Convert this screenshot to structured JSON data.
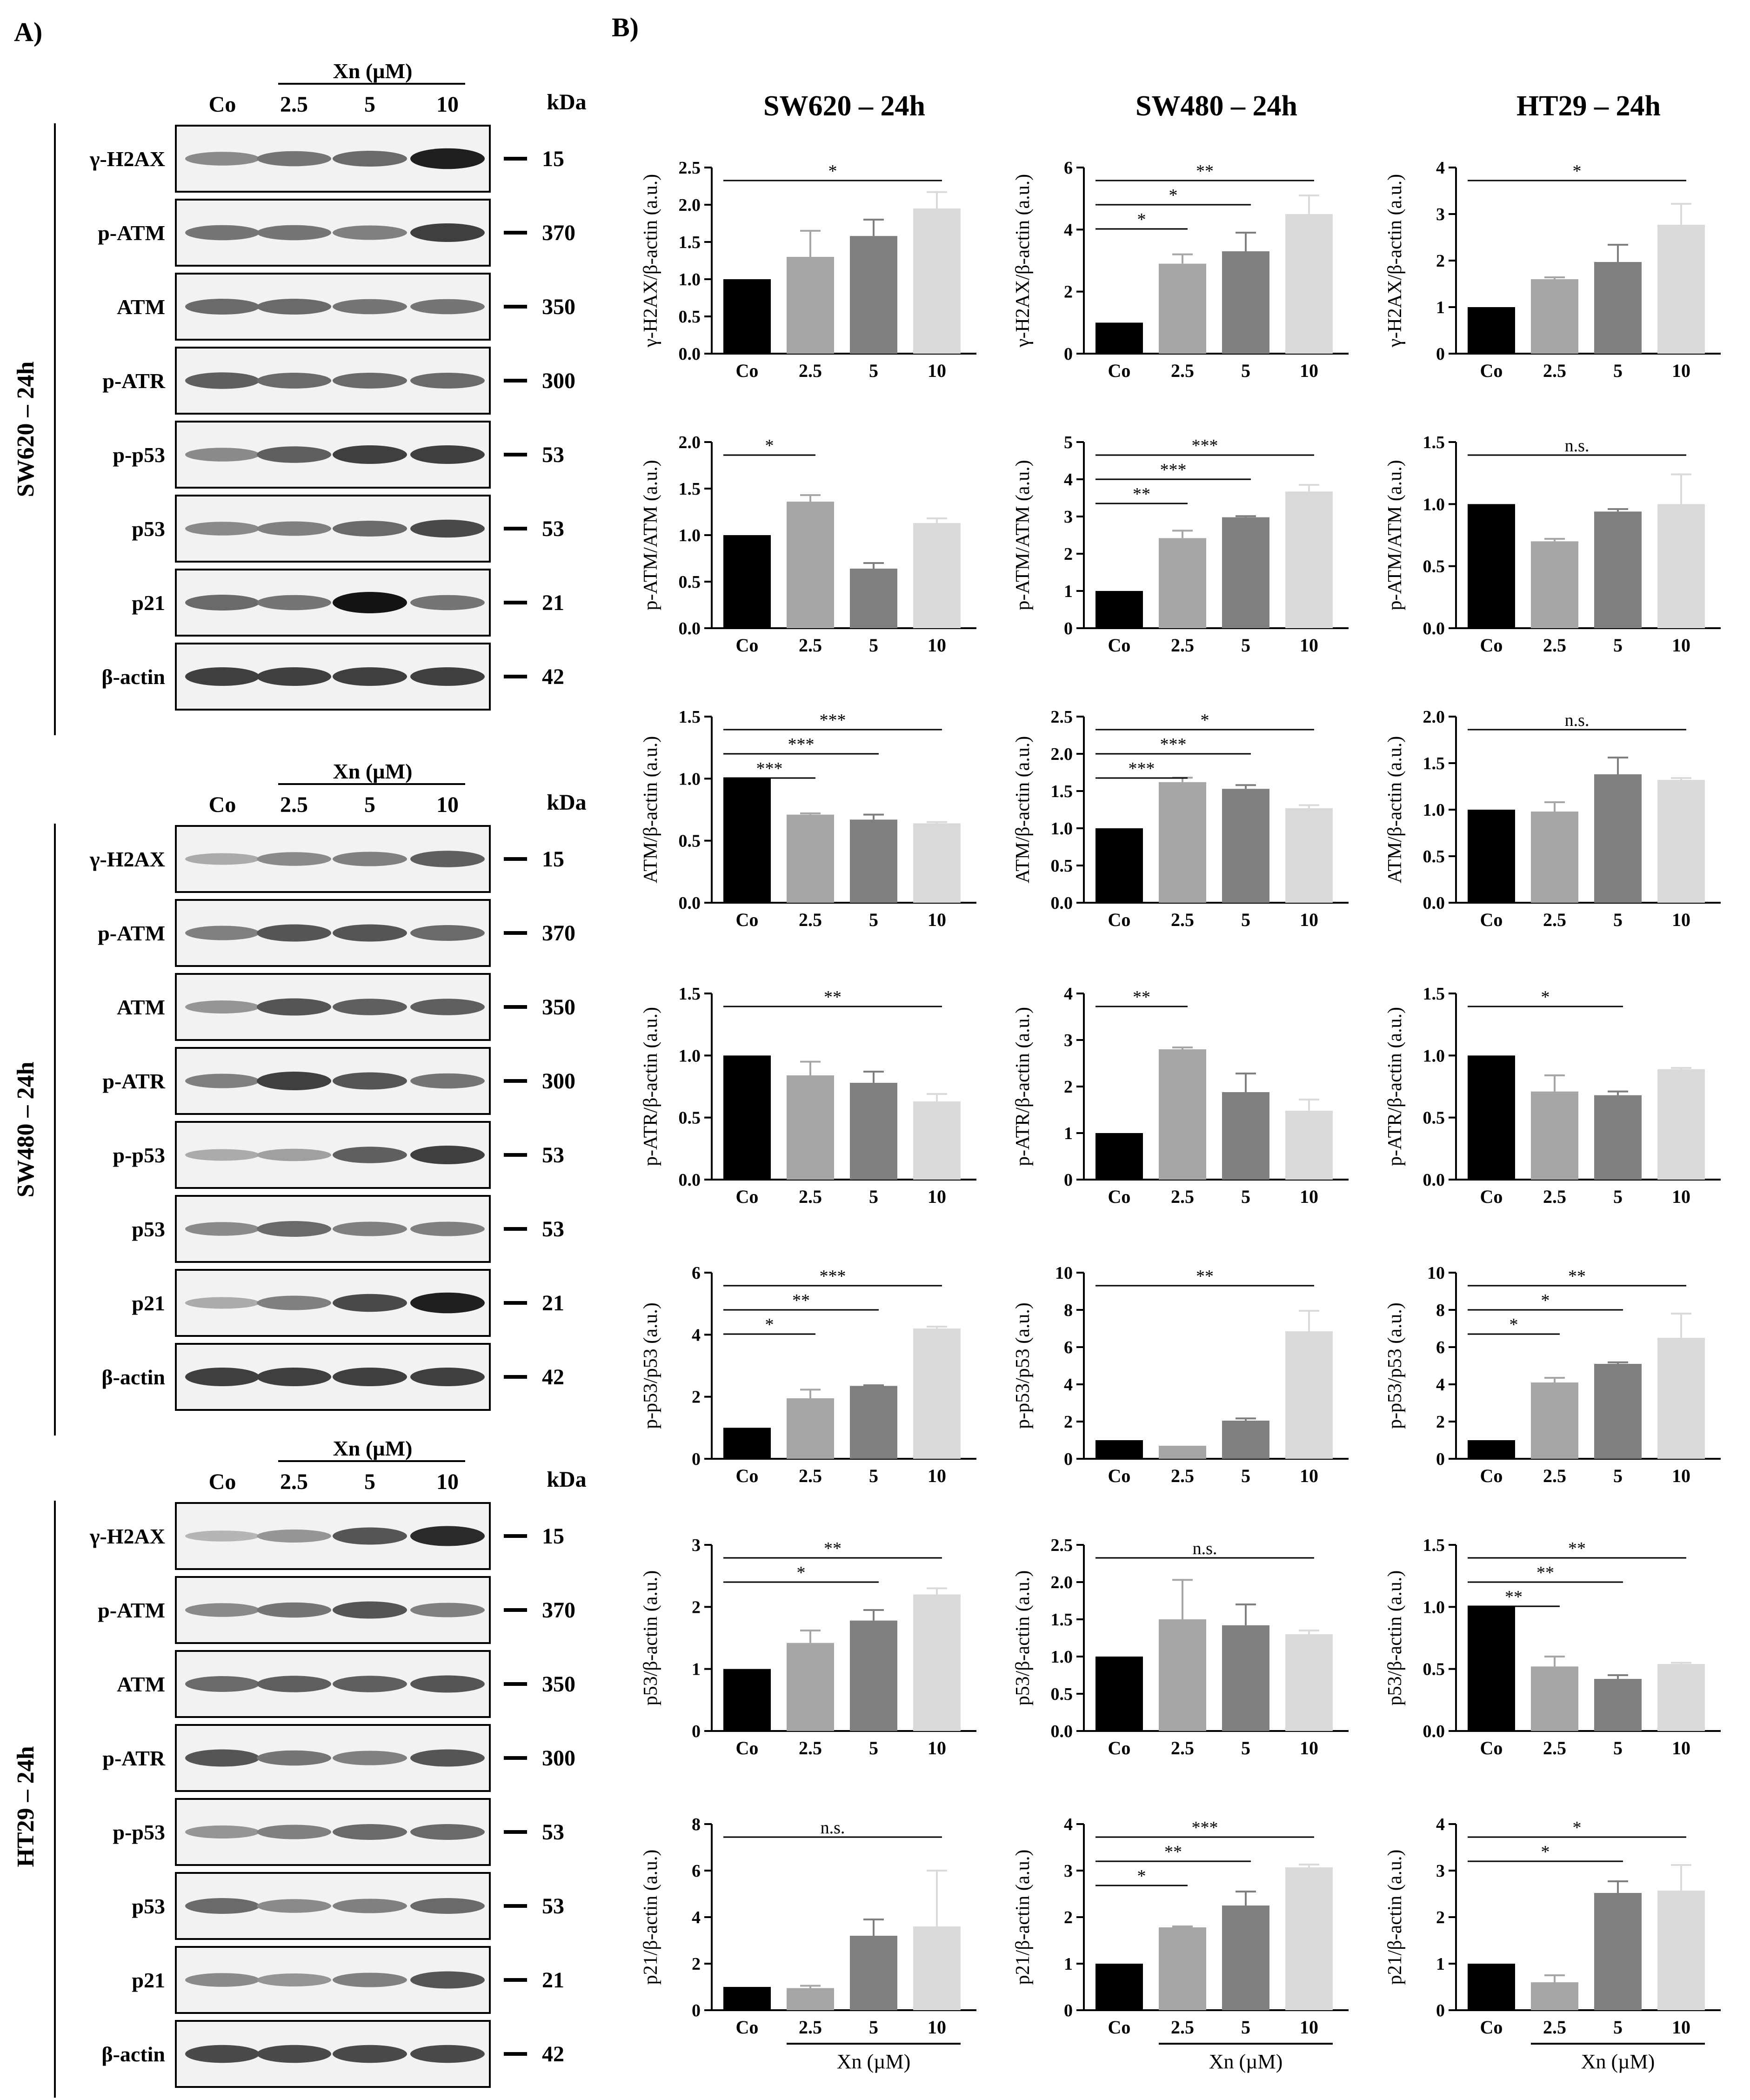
{
  "panel_labels": {
    "a": "A)",
    "b": "B)"
  },
  "blot_lanes": [
    "Co",
    "2.5",
    "5",
    "10"
  ],
  "blot_treatment": "Xn (µM)",
  "kda_label": "kDa",
  "blot_rows": [
    {
      "protein": "γ-H2AX",
      "kda": "15"
    },
    {
      "protein": "p-ATM",
      "kda": "370"
    },
    {
      "protein": "ATM",
      "kda": "350"
    },
    {
      "protein": "p-ATR",
      "kda": "300"
    },
    {
      "protein": "p-p53",
      "kda": "53"
    },
    {
      "protein": "p53",
      "kda": "53"
    },
    {
      "protein": "p21",
      "kda": "21"
    },
    {
      "protein": "β-actin",
      "kda": "42"
    }
  ],
  "blots": [
    {
      "cell_line": "SW620 – 24h",
      "intensities": [
        [
          0.45,
          0.55,
          0.6,
          0.95
        ],
        [
          0.55,
          0.55,
          0.5,
          0.8
        ],
        [
          0.6,
          0.6,
          0.55,
          0.55
        ],
        [
          0.65,
          0.6,
          0.6,
          0.6
        ],
        [
          0.45,
          0.65,
          0.8,
          0.8
        ],
        [
          0.45,
          0.5,
          0.6,
          0.75
        ],
        [
          0.6,
          0.55,
          1.0,
          0.55
        ],
        [
          0.8,
          0.8,
          0.8,
          0.8
        ]
      ]
    },
    {
      "cell_line": "SW480 – 24h",
      "intensities": [
        [
          0.3,
          0.45,
          0.5,
          0.65
        ],
        [
          0.5,
          0.7,
          0.7,
          0.6
        ],
        [
          0.4,
          0.7,
          0.65,
          0.65
        ],
        [
          0.5,
          0.8,
          0.7,
          0.55
        ],
        [
          0.3,
          0.35,
          0.65,
          0.8
        ],
        [
          0.45,
          0.6,
          0.5,
          0.5
        ],
        [
          0.3,
          0.5,
          0.75,
          0.95
        ],
        [
          0.8,
          0.8,
          0.8,
          0.8
        ]
      ]
    },
    {
      "cell_line": "HT29 – 24h",
      "intensities": [
        [
          0.25,
          0.4,
          0.7,
          0.9
        ],
        [
          0.45,
          0.55,
          0.7,
          0.5
        ],
        [
          0.6,
          0.65,
          0.65,
          0.7
        ],
        [
          0.7,
          0.55,
          0.5,
          0.7
        ],
        [
          0.4,
          0.5,
          0.6,
          0.6
        ],
        [
          0.6,
          0.45,
          0.5,
          0.6
        ],
        [
          0.45,
          0.4,
          0.5,
          0.7
        ],
        [
          0.75,
          0.75,
          0.75,
          0.75
        ]
      ]
    }
  ],
  "column_titles": [
    "SW620 – 24h",
    "SW480 – 24h",
    "HT29 – 24h"
  ],
  "xlabel": "Xn (µM)",
  "chart_data": [
    {
      "type": "bar",
      "title": "",
      "ylabel": "γ-H2AX/β-actin (a.u.)",
      "categories": [
        "Co",
        "2.5",
        "5",
        "10"
      ],
      "values": [
        1.0,
        1.3,
        1.58,
        1.95
      ],
      "errors": [
        0,
        0.35,
        0.22,
        0.22
      ],
      "ylim": [
        0,
        2.5
      ],
      "yticks": [
        "0.0",
        "0.5",
        "1.0",
        "1.5",
        "2.0",
        "2.5"
      ],
      "sig": [
        {
          "from": 0,
          "to": 3,
          "label": "*"
        }
      ]
    },
    {
      "type": "bar",
      "title": "",
      "ylabel": "γ-H2AX/β-actin (a.u.)",
      "categories": [
        "Co",
        "2.5",
        "5",
        "10"
      ],
      "values": [
        1.0,
        2.9,
        3.3,
        4.5
      ],
      "errors": [
        0,
        0.3,
        0.6,
        0.6
      ],
      "ylim": [
        0,
        6
      ],
      "yticks": [
        "0",
        "2",
        "4",
        "6"
      ],
      "sig": [
        {
          "from": 0,
          "to": 3,
          "label": "**"
        },
        {
          "from": 0,
          "to": 2,
          "label": "*"
        },
        {
          "from": 0,
          "to": 1,
          "label": "*"
        }
      ]
    },
    {
      "type": "bar",
      "title": "",
      "ylabel": "γ-H2AX/β-actin (a.u.)",
      "categories": [
        "Co",
        "2.5",
        "5",
        "10"
      ],
      "values": [
        1.0,
        1.6,
        1.97,
        2.77
      ],
      "errors": [
        0,
        0.04,
        0.37,
        0.45
      ],
      "ylim": [
        0,
        4
      ],
      "yticks": [
        "0",
        "1",
        "2",
        "3",
        "4"
      ],
      "sig": [
        {
          "from": 0,
          "to": 3,
          "label": "*"
        }
      ]
    },
    {
      "type": "bar",
      "title": "",
      "ylabel": "p-ATM/ATM (a.u.)",
      "categories": [
        "Co",
        "2.5",
        "5",
        "10"
      ],
      "values": [
        1.0,
        1.36,
        0.64,
        1.13
      ],
      "errors": [
        0,
        0.07,
        0.06,
        0.05
      ],
      "ylim": [
        0,
        2.0
      ],
      "yticks": [
        "0.0",
        "0.5",
        "1.0",
        "1.5",
        "2.0"
      ],
      "sig": [
        {
          "from": 0,
          "to": 1,
          "label": "*"
        }
      ]
    },
    {
      "type": "bar",
      "title": "",
      "ylabel": "p-ATM/ATM (a.u.)",
      "categories": [
        "Co",
        "2.5",
        "5",
        "10"
      ],
      "values": [
        1.0,
        2.42,
        2.98,
        3.67
      ],
      "errors": [
        0,
        0.2,
        0.03,
        0.18
      ],
      "ylim": [
        0,
        5
      ],
      "yticks": [
        "0",
        "1",
        "2",
        "3",
        "4",
        "5"
      ],
      "sig": [
        {
          "from": 0,
          "to": 3,
          "label": "***"
        },
        {
          "from": 0,
          "to": 2,
          "label": "***"
        },
        {
          "from": 0,
          "to": 1,
          "label": "**"
        }
      ]
    },
    {
      "type": "bar",
      "title": "",
      "ylabel": "p-ATM/ATM (a.u.)",
      "categories": [
        "Co",
        "2.5",
        "5",
        "10"
      ],
      "values": [
        1.0,
        0.7,
        0.94,
        1.0
      ],
      "errors": [
        0,
        0.02,
        0.02,
        0.24
      ],
      "ylim": [
        0,
        1.5
      ],
      "yticks": [
        "0.0",
        "0.5",
        "1.0",
        "1.5"
      ],
      "sig": [
        {
          "from": 0,
          "to": 3,
          "label": "n.s."
        }
      ]
    },
    {
      "type": "bar",
      "title": "",
      "ylabel": "ATM/β-actin (a.u.)",
      "categories": [
        "Co",
        "2.5",
        "5",
        "10"
      ],
      "values": [
        1.0,
        0.71,
        0.67,
        0.64
      ],
      "errors": [
        0,
        0.01,
        0.04,
        0.01
      ],
      "ylim": [
        0,
        1.5
      ],
      "yticks": [
        "0.0",
        "0.5",
        "1.0",
        "1.5"
      ],
      "sig": [
        {
          "from": 0,
          "to": 3,
          "label": "***"
        },
        {
          "from": 0,
          "to": 2,
          "label": "***"
        },
        {
          "from": 0,
          "to": 1,
          "label": "***"
        }
      ]
    },
    {
      "type": "bar",
      "title": "",
      "ylabel": "ATM/β-actin (a.u.)",
      "categories": [
        "Co",
        "2.5",
        "5",
        "10"
      ],
      "values": [
        1.0,
        1.62,
        1.53,
        1.27
      ],
      "errors": [
        0,
        0.06,
        0.05,
        0.04
      ],
      "ylim": [
        0,
        2.5
      ],
      "yticks": [
        "0.0",
        "0.5",
        "1.0",
        "1.5",
        "2.0",
        "2.5"
      ],
      "sig": [
        {
          "from": 0,
          "to": 3,
          "label": "*"
        },
        {
          "from": 0,
          "to": 2,
          "label": "***"
        },
        {
          "from": 0,
          "to": 1,
          "label": "***"
        }
      ]
    },
    {
      "type": "bar",
      "title": "",
      "ylabel": "ATM/β-actin (a.u.)",
      "categories": [
        "Co",
        "2.5",
        "5",
        "10"
      ],
      "values": [
        1.0,
        0.98,
        1.38,
        1.32
      ],
      "errors": [
        0,
        0.1,
        0.18,
        0.02
      ],
      "ylim": [
        0,
        2.0
      ],
      "yticks": [
        "0.0",
        "0.5",
        "1.0",
        "1.5",
        "2.0"
      ],
      "sig": [
        {
          "from": 0,
          "to": 3,
          "label": "n.s."
        }
      ]
    },
    {
      "type": "bar",
      "title": "",
      "ylabel": "p-ATR/β-actin (a.u.)",
      "categories": [
        "Co",
        "2.5",
        "5",
        "10"
      ],
      "values": [
        1.0,
        0.84,
        0.78,
        0.63
      ],
      "errors": [
        0,
        0.11,
        0.09,
        0.06
      ],
      "ylim": [
        0,
        1.5
      ],
      "yticks": [
        "0.0",
        "0.5",
        "1.0",
        "1.5"
      ],
      "sig": [
        {
          "from": 0,
          "to": 3,
          "label": "**"
        }
      ]
    },
    {
      "type": "bar",
      "title": "",
      "ylabel": "p-ATR/β-actin (a.u.)",
      "categories": [
        "Co",
        "2.5",
        "5",
        "10"
      ],
      "values": [
        1.0,
        2.8,
        1.88,
        1.48
      ],
      "errors": [
        0,
        0.04,
        0.4,
        0.24
      ],
      "ylim": [
        0,
        4
      ],
      "yticks": [
        "0",
        "1",
        "2",
        "3",
        "4"
      ],
      "sig": [
        {
          "from": 0,
          "to": 1,
          "label": "**"
        }
      ]
    },
    {
      "type": "bar",
      "title": "",
      "ylabel": "p-ATR/β-actin (a.u.)",
      "categories": [
        "Co",
        "2.5",
        "5",
        "10"
      ],
      "values": [
        1.0,
        0.71,
        0.68,
        0.89
      ],
      "errors": [
        0,
        0.13,
        0.03,
        0.01
      ],
      "ylim": [
        0,
        1.5
      ],
      "yticks": [
        "0.0",
        "0.5",
        "1.0",
        "1.5"
      ],
      "sig": [
        {
          "from": 0,
          "to": 2,
          "label": "*"
        }
      ]
    },
    {
      "type": "bar",
      "title": "",
      "ylabel": "p-p53/p53 (a.u.)",
      "categories": [
        "Co",
        "2.5",
        "5",
        "10"
      ],
      "values": [
        1.0,
        1.95,
        2.35,
        4.2
      ],
      "errors": [
        0,
        0.28,
        0.02,
        0.06
      ],
      "ylim": [
        0,
        6
      ],
      "yticks": [
        "0",
        "2",
        "4",
        "6"
      ],
      "sig": [
        {
          "from": 0,
          "to": 3,
          "label": "***"
        },
        {
          "from": 0,
          "to": 2,
          "label": "**"
        },
        {
          "from": 0,
          "to": 1,
          "label": "*"
        }
      ]
    },
    {
      "type": "bar",
      "title": "",
      "ylabel": "p-p53/p53 (a.u.)",
      "categories": [
        "Co",
        "2.5",
        "5",
        "10"
      ],
      "values": [
        1.0,
        0.7,
        2.05,
        6.85
      ],
      "errors": [
        0,
        0,
        0.12,
        1.1
      ],
      "ylim": [
        0,
        10
      ],
      "yticks": [
        "0",
        "2",
        "4",
        "6",
        "8",
        "10"
      ],
      "sig": [
        {
          "from": 0,
          "to": 3,
          "label": "**"
        }
      ]
    },
    {
      "type": "bar",
      "title": "",
      "ylabel": "p-p53/p53 (a.u.)",
      "categories": [
        "Co",
        "2.5",
        "5",
        "10"
      ],
      "values": [
        1.0,
        4.1,
        5.1,
        6.5
      ],
      "errors": [
        0,
        0.25,
        0.08,
        1.3
      ],
      "ylim": [
        0,
        10
      ],
      "yticks": [
        "0",
        "2",
        "4",
        "6",
        "8",
        "10"
      ],
      "sig": [
        {
          "from": 0,
          "to": 3,
          "label": "**"
        },
        {
          "from": 0,
          "to": 2,
          "label": "*"
        },
        {
          "from": 0,
          "to": 1,
          "label": "*"
        }
      ]
    },
    {
      "type": "bar",
      "title": "",
      "ylabel": "p53/β-actin (a.u.)",
      "categories": [
        "Co",
        "2.5",
        "5",
        "10"
      ],
      "values": [
        1.0,
        1.42,
        1.78,
        2.2
      ],
      "errors": [
        0,
        0.2,
        0.17,
        0.1
      ],
      "ylim": [
        0,
        3
      ],
      "yticks": [
        "0",
        "1",
        "2",
        "3"
      ],
      "sig": [
        {
          "from": 0,
          "to": 3,
          "label": "**"
        },
        {
          "from": 0,
          "to": 2,
          "label": "*"
        }
      ]
    },
    {
      "type": "bar",
      "title": "",
      "ylabel": "p53/β-actin (a.u.)",
      "categories": [
        "Co",
        "2.5",
        "5",
        "10"
      ],
      "values": [
        1.0,
        1.5,
        1.42,
        1.3
      ],
      "errors": [
        0,
        0.53,
        0.28,
        0.05
      ],
      "ylim": [
        0,
        2.5
      ],
      "yticks": [
        "0.0",
        "0.5",
        "1.0",
        "1.5",
        "2.0",
        "2.5"
      ],
      "sig": [
        {
          "from": 0,
          "to": 3,
          "label": "n.s."
        }
      ]
    },
    {
      "type": "bar",
      "title": "",
      "ylabel": "p53/β-actin (a.u.)",
      "categories": [
        "Co",
        "2.5",
        "5",
        "10"
      ],
      "values": [
        1.0,
        0.52,
        0.42,
        0.54
      ],
      "errors": [
        0,
        0.08,
        0.03,
        0.01
      ],
      "ylim": [
        0,
        1.5
      ],
      "yticks": [
        "0.0",
        "0.5",
        "1.0",
        "1.5"
      ],
      "sig": [
        {
          "from": 0,
          "to": 3,
          "label": "**"
        },
        {
          "from": 0,
          "to": 2,
          "label": "**"
        },
        {
          "from": 0,
          "to": 1,
          "label": "**"
        }
      ]
    },
    {
      "type": "bar",
      "title": "",
      "ylabel": "p21/β-actin (a.u.)",
      "categories": [
        "Co",
        "2.5",
        "5",
        "10"
      ],
      "values": [
        1.0,
        0.95,
        3.2,
        3.6
      ],
      "errors": [
        0,
        0.1,
        0.7,
        2.4
      ],
      "ylim": [
        0,
        8
      ],
      "yticks": [
        "0",
        "2",
        "4",
        "6",
        "8"
      ],
      "sig": [
        {
          "from": 0,
          "to": 3,
          "label": "n.s."
        }
      ]
    },
    {
      "type": "bar",
      "title": "",
      "ylabel": "p21/β-actin (a.u.)",
      "categories": [
        "Co",
        "2.5",
        "5",
        "10"
      ],
      "values": [
        1.0,
        1.78,
        2.25,
        3.07
      ],
      "errors": [
        0,
        0.02,
        0.3,
        0.06
      ],
      "ylim": [
        0,
        4
      ],
      "yticks": [
        "0",
        "1",
        "2",
        "3",
        "4"
      ],
      "sig": [
        {
          "from": 0,
          "to": 3,
          "label": "***"
        },
        {
          "from": 0,
          "to": 2,
          "label": "**"
        },
        {
          "from": 0,
          "to": 1,
          "label": "*"
        }
      ]
    },
    {
      "type": "bar",
      "title": "",
      "ylabel": "p21/β-actin (a.u.)",
      "categories": [
        "Co",
        "2.5",
        "5",
        "10"
      ],
      "values": [
        1.0,
        0.6,
        2.52,
        2.57
      ],
      "errors": [
        0,
        0.15,
        0.25,
        0.55
      ],
      "ylim": [
        0,
        4
      ],
      "yticks": [
        "0",
        "1",
        "2",
        "3",
        "4"
      ],
      "sig": [
        {
          "from": 0,
          "to": 3,
          "label": "*"
        },
        {
          "from": 0,
          "to": 2,
          "label": "*"
        }
      ]
    }
  ],
  "bar_colors": [
    "#000000",
    "#a6a6a6",
    "#7f7f7f",
    "#d9d9d9"
  ]
}
